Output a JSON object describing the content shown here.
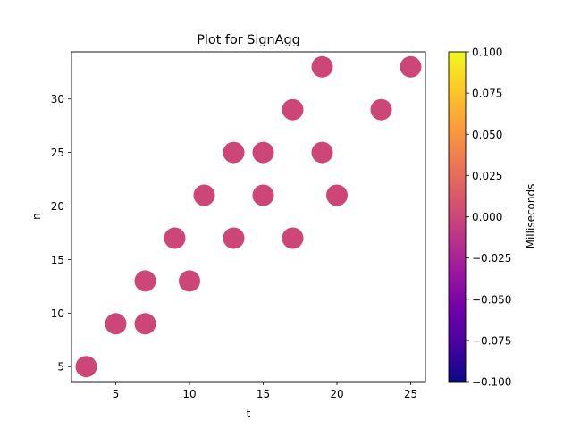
{
  "chart_data": {
    "type": "scatter",
    "title": "Plot for SignAgg",
    "xlabel": "t",
    "ylabel": "n",
    "xlim": [
      2,
      26
    ],
    "ylim": [
      3.6,
      34.4
    ],
    "xticks": [
      5,
      10,
      15,
      20,
      25
    ],
    "yticks": [
      5,
      10,
      15,
      20,
      25,
      30
    ],
    "grid": false,
    "points": [
      {
        "t": 3,
        "n": 5,
        "value": 0
      },
      {
        "t": 5,
        "n": 9,
        "value": 0
      },
      {
        "t": 7,
        "n": 9,
        "value": 0
      },
      {
        "t": 7,
        "n": 13,
        "value": 0
      },
      {
        "t": 9,
        "n": 17,
        "value": 0
      },
      {
        "t": 10,
        "n": 13,
        "value": 0
      },
      {
        "t": 11,
        "n": 21,
        "value": 0
      },
      {
        "t": 13,
        "n": 17,
        "value": 0
      },
      {
        "t": 13,
        "n": 25,
        "value": 0
      },
      {
        "t": 15,
        "n": 21,
        "value": 0
      },
      {
        "t": 15,
        "n": 25,
        "value": 0
      },
      {
        "t": 17,
        "n": 17,
        "value": 0
      },
      {
        "t": 17,
        "n": 29,
        "value": 0
      },
      {
        "t": 19,
        "n": 25,
        "value": 0
      },
      {
        "t": 19,
        "n": 33,
        "value": 0
      },
      {
        "t": 20,
        "n": 21,
        "value": 0
      },
      {
        "t": 23,
        "n": 29,
        "value": 0
      },
      {
        "t": 25,
        "n": 33,
        "value": 0
      }
    ],
    "marker_color": "#cc4778",
    "colorbar": {
      "label": "Milliseconds",
      "colormap": "plasma",
      "range": [
        -0.1,
        0.1
      ],
      "ticks": [
        "0.100",
        "0.075",
        "0.050",
        "0.025",
        "0.000",
        "−0.025",
        "−0.050",
        "−0.075",
        "−0.100"
      ],
      "tick_values": [
        0.1,
        0.075,
        0.05,
        0.025,
        0,
        -0.025,
        -0.05,
        -0.075,
        -0.1
      ],
      "stops": [
        "#0d0887",
        "#46039f",
        "#7201a8",
        "#9c179e",
        "#bd3786",
        "#d8576b",
        "#ed7953",
        "#fb9f3a",
        "#fdca26",
        "#f0f921"
      ]
    }
  }
}
